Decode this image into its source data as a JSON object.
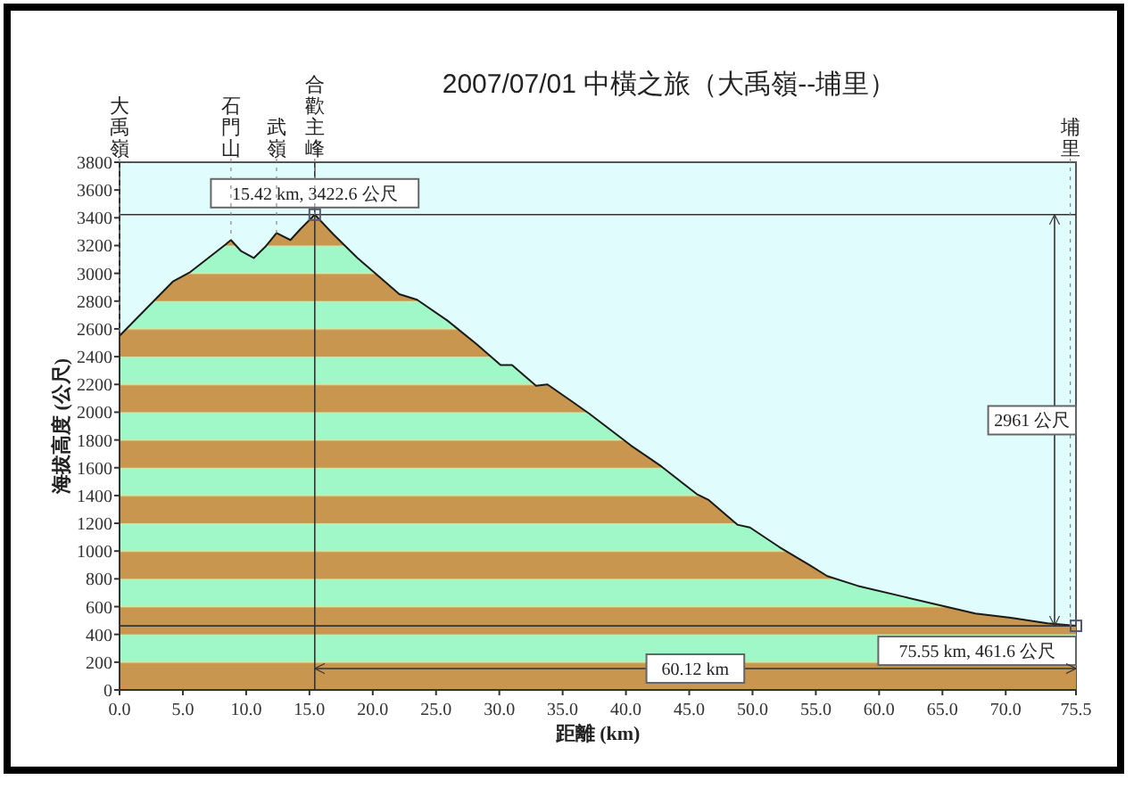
{
  "chart_data": {
    "type": "area",
    "title": "2007/07/01  中橫之旅（大禹嶺--埔里）",
    "xlabel": "距離  (km)",
    "ylabel": "海拔高度 (公尺)",
    "x": [
      0,
      2.8,
      4.2,
      5.6,
      7,
      8.4,
      8.8,
      9.6,
      10.6,
      11.5,
      12.4,
      13.5,
      14.3,
      15.42,
      16.9,
      18.8,
      20.7,
      22.1,
      23.5,
      25.9,
      28.2,
      30.1,
      31,
      32.9,
      33.8,
      35.7,
      37.1,
      40.4,
      42.8,
      45.6,
      46.5,
      48.8,
      49.8,
      52.1,
      54.5,
      55.9,
      58.3,
      62,
      64.8,
      67.6,
      70.4,
      73.3,
      75.55
    ],
    "series": [
      {
        "color": "#c8964f",
        "values": [
          2550,
          2810,
          2940,
          3010,
          3110,
          3210,
          3240,
          3160,
          3110,
          3190,
          3290,
          3240,
          3320,
          3422.6,
          3280,
          3110,
          2960,
          2850,
          2810,
          2660,
          2490,
          2340,
          2340,
          2190,
          2200,
          2080,
          1990,
          1760,
          1610,
          1410,
          1370,
          1190,
          1170,
          1030,
          900,
          820,
          750,
          670,
          610,
          550,
          520,
          480,
          461.6
        ]
      }
    ],
    "xlim": [
      0,
      75.55
    ],
    "ylim": [
      0,
      3800
    ],
    "xticks": [
      {
        "value": 0,
        "label": "0.0"
      },
      {
        "value": 5,
        "label": "5.0"
      },
      {
        "value": 10,
        "label": "10.0"
      },
      {
        "value": 15,
        "label": "15.0"
      },
      {
        "value": 20,
        "label": "20.0"
      },
      {
        "value": 25,
        "label": "25.0"
      },
      {
        "value": 30,
        "label": "30.0"
      },
      {
        "value": 35,
        "label": "35.0"
      },
      {
        "value": 40,
        "label": "40.0"
      },
      {
        "value": 45,
        "label": "45.0"
      },
      {
        "value": 50,
        "label": "50.0"
      },
      {
        "value": 55,
        "label": "55.0"
      },
      {
        "value": 60,
        "label": "60.0"
      },
      {
        "value": 65,
        "label": "65.0"
      },
      {
        "value": 70,
        "label": "70.0"
      },
      {
        "value": 75.55,
        "label": "75.5"
      }
    ],
    "yticks": [
      0,
      200,
      400,
      600,
      800,
      1000,
      1200,
      1400,
      1600,
      1800,
      2000,
      2200,
      2400,
      2600,
      2800,
      3000,
      3200,
      3400,
      3600,
      3800
    ],
    "ref_lines": [
      {
        "axis": "x",
        "value": 15.42,
        "color": "#333333"
      },
      {
        "axis": "y",
        "value": 3422.6,
        "color": "#333333",
        "label": "15.42 km, 3422.6 公尺"
      },
      {
        "axis": "y",
        "value": 461.6,
        "color": "#333333",
        "label": "75.55 km, 461.6 公尺"
      }
    ],
    "annotations": [
      {
        "text": "大禹嶺",
        "x": 0,
        "y": 2550
      },
      {
        "text": "石門山",
        "x": 8.8,
        "y": 3240
      },
      {
        "text": "武嶺",
        "x": 12.4,
        "y": 3290
      },
      {
        "text": "合歡主峰",
        "x": 15.42,
        "y": 3422.6
      },
      {
        "text": "埔里",
        "x": 75.1,
        "y": 465
      },
      "2961 公尺",
      "60.12 km"
    ]
  }
}
